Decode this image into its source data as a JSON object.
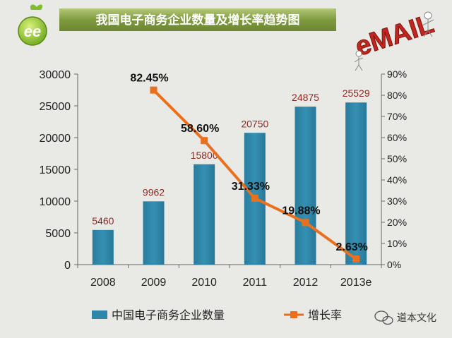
{
  "chart_data": {
    "type": "bar",
    "title": "我国电子商务企业数量及增长率趋势图",
    "categories": [
      "2008",
      "2009",
      "2010",
      "2011",
      "2012",
      "2013e"
    ],
    "series": [
      {
        "name": "中国电子商务企业数量",
        "kind": "bar",
        "axis": "left",
        "color": "#2e86a8",
        "values": [
          5460,
          9962,
          15800,
          20750,
          24875,
          25529
        ],
        "labels": [
          "5460",
          "9962",
          "15800",
          "20750",
          "24875",
          "25529"
        ]
      },
      {
        "name": "增长率",
        "kind": "line",
        "axis": "right",
        "color": "#e8701e",
        "values": [
          null,
          82.45,
          58.6,
          31.33,
          19.88,
          2.63
        ],
        "labels": [
          "",
          "82.45%",
          "58.60%",
          "31.33%",
          "19.88%",
          "2.63%"
        ]
      }
    ],
    "ylim_left": [
      0,
      30000
    ],
    "left_ticks": [
      "0",
      "5000",
      "10000",
      "15000",
      "20000",
      "25000",
      "30000"
    ],
    "ylim_right": [
      0,
      90
    ],
    "right_ticks": [
      "0%",
      "10%",
      "20%",
      "30%",
      "40%",
      "50%",
      "60%",
      "70%",
      "80%",
      "90%"
    ],
    "grid": false,
    "legend_position": "bottom",
    "bar_label_color": "#8b2a24",
    "line_label_color": "#111111"
  },
  "decorations": {
    "logo_text": "ee",
    "email_text": "eMAIL",
    "watermark": "道本文化"
  }
}
